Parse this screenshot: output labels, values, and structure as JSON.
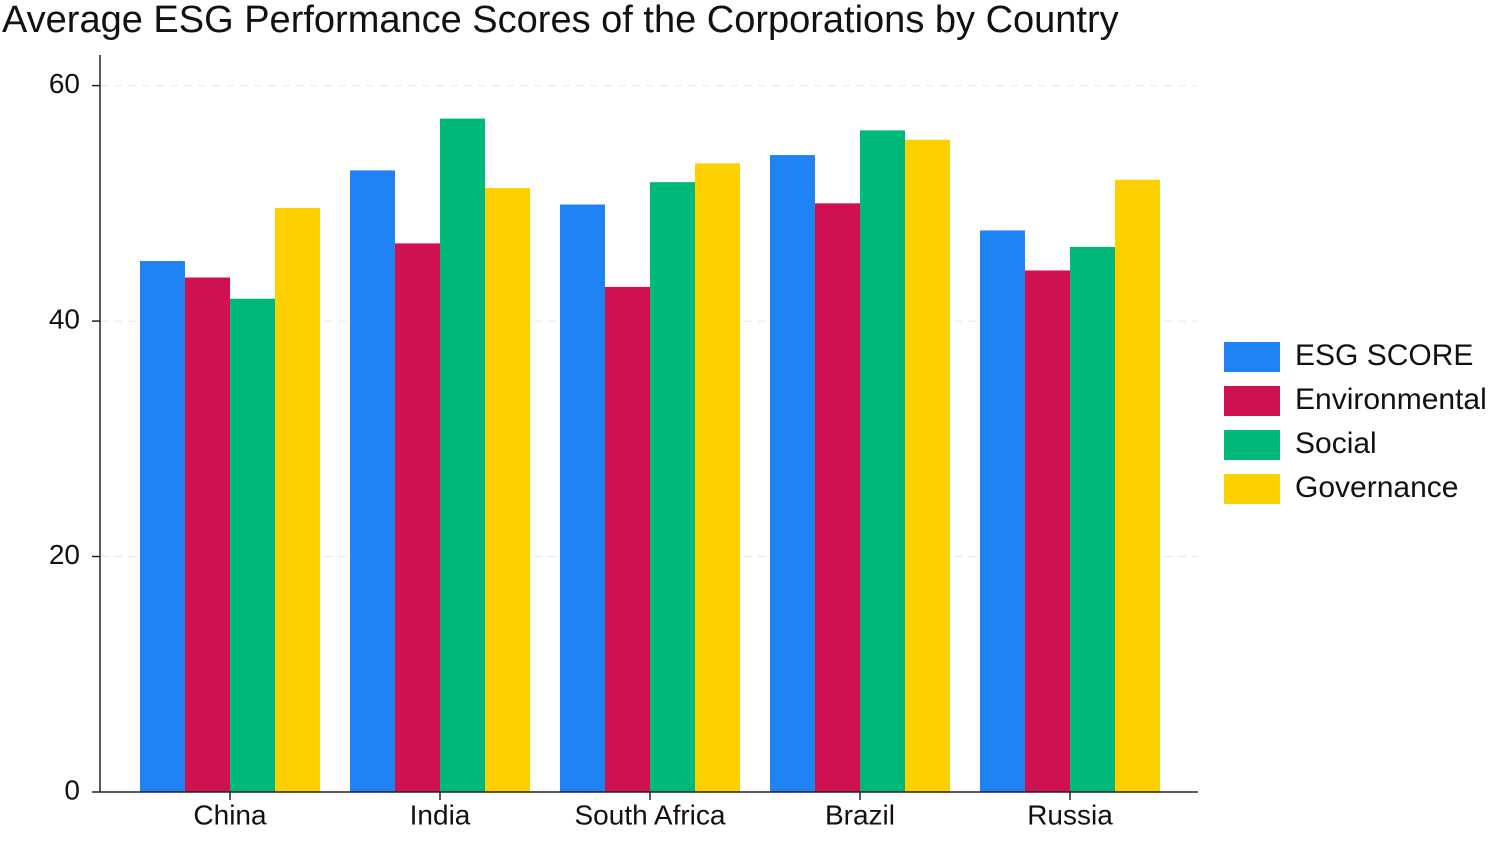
{
  "chart_data": {
    "type": "bar",
    "title": "Average ESG Performance Scores of the Corporations by Country",
    "categories": [
      "China",
      "India",
      "South Africa",
      "Brazil",
      "Russia"
    ],
    "series": [
      {
        "name": "ESG SCORE",
        "color": "#1f83f5",
        "values": [
          45.1,
          52.8,
          49.9,
          54.1,
          47.7
        ]
      },
      {
        "name": "Environmental",
        "color": "#d0114f",
        "values": [
          43.7,
          46.6,
          42.9,
          50.0,
          44.3
        ]
      },
      {
        "name": "Social",
        "color": "#00b87a",
        "values": [
          41.9,
          57.2,
          51.8,
          56.2,
          46.3
        ]
      },
      {
        "name": "Governance",
        "color": "#ffd000",
        "values": [
          49.6,
          51.3,
          53.4,
          55.4,
          52.0
        ]
      }
    ],
    "ylim": [
      0,
      62.6
    ],
    "yticks": [
      0,
      20,
      40,
      60
    ],
    "grid": true,
    "legend": "right"
  }
}
